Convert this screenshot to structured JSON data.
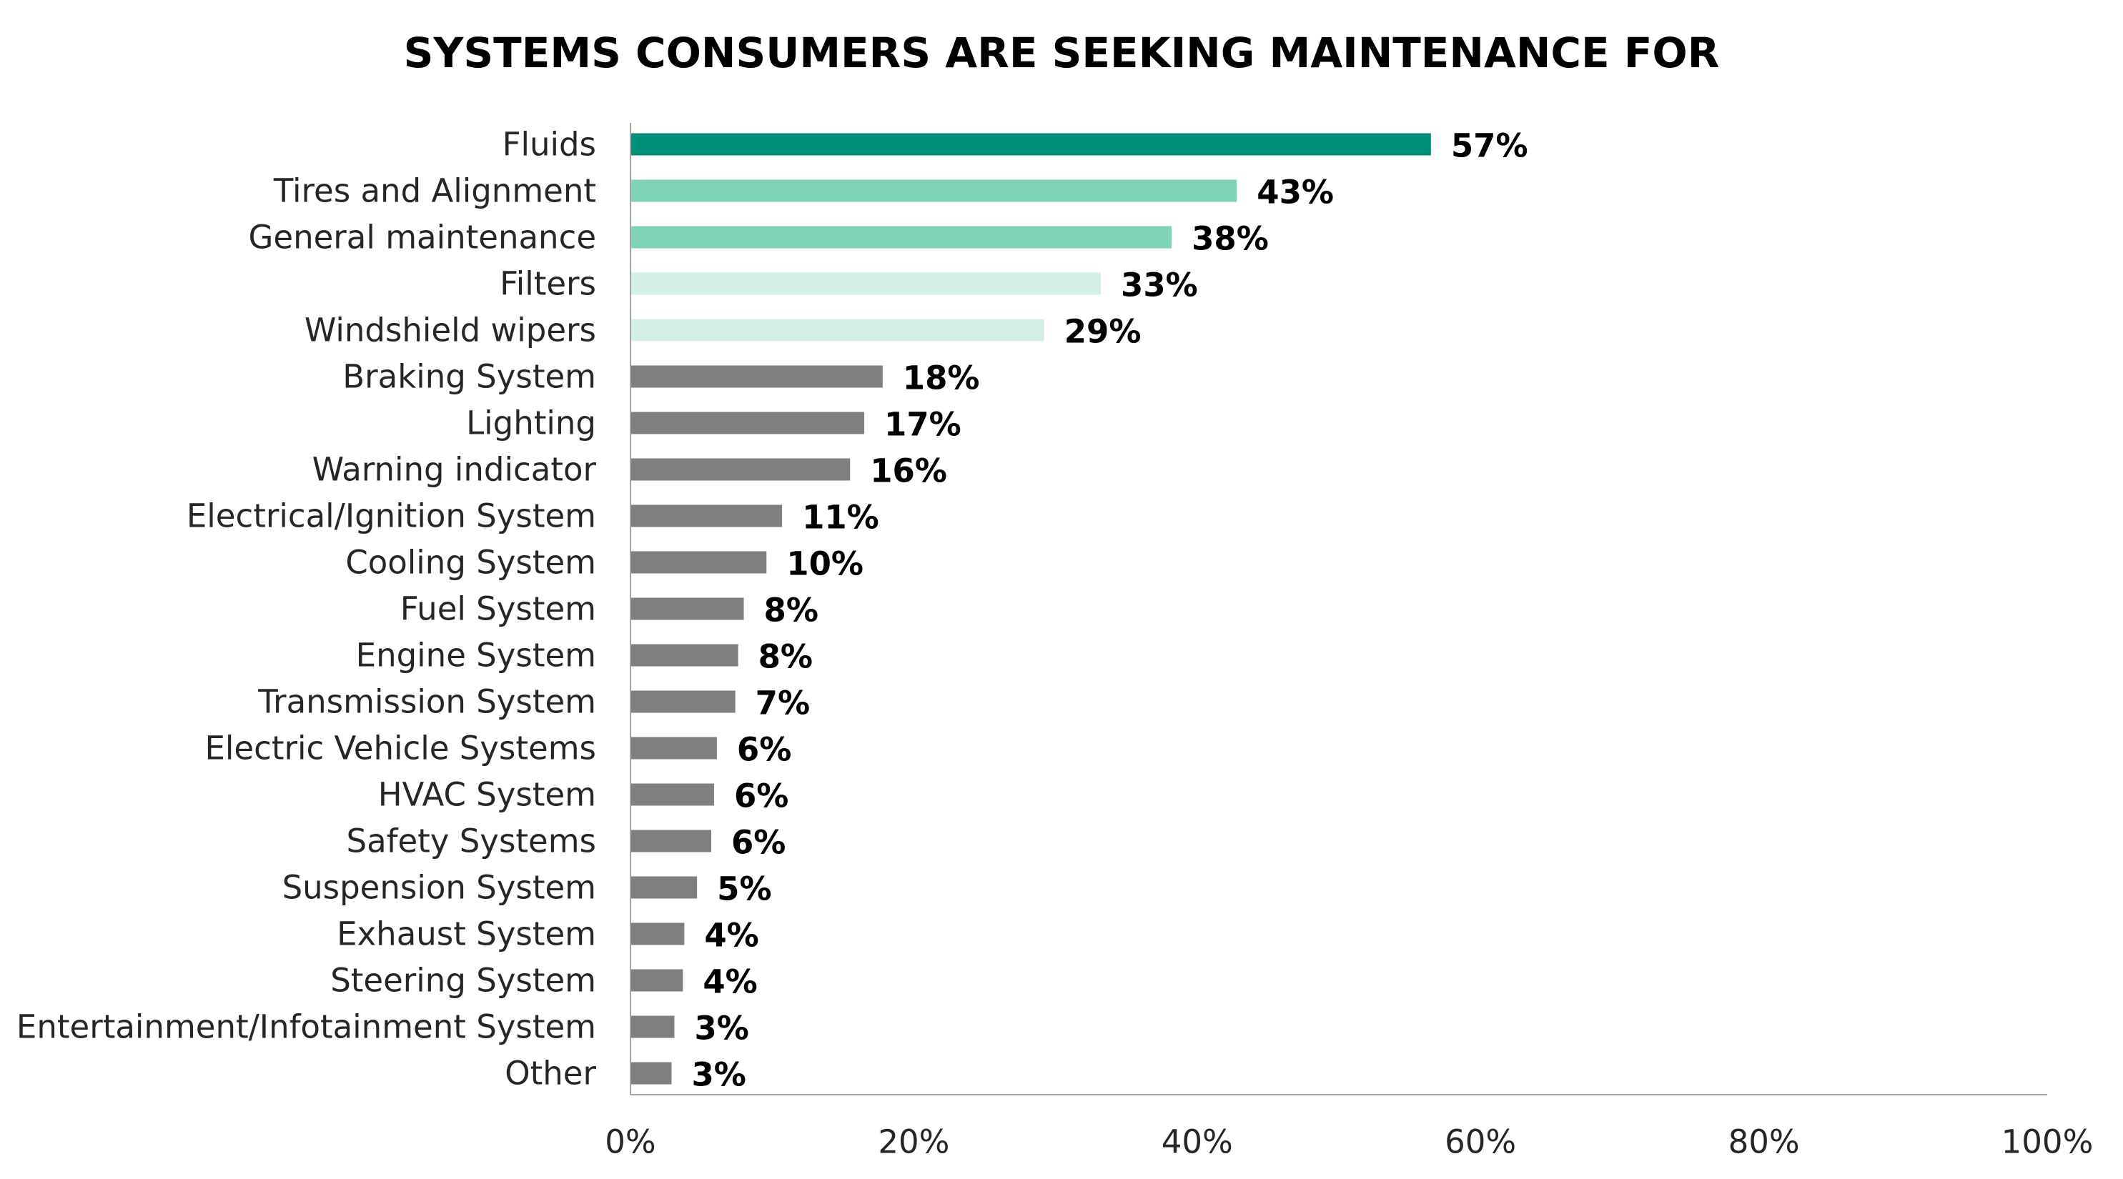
{
  "chart_data": {
    "type": "bar",
    "orientation": "horizontal",
    "title": "SYSTEMS CONSUMERS ARE SEEKING MAINTENANCE FOR",
    "xlabel": "",
    "ylabel": "",
    "xlim": [
      0,
      100
    ],
    "x_ticks": [
      "0%",
      "20%",
      "40%",
      "60%",
      "80%",
      "100%"
    ],
    "x_tick_values": [
      0,
      20,
      40,
      60,
      80,
      100
    ],
    "grid": false,
    "legend": "none",
    "categories": [
      "Fluids",
      "Tires and Alignment",
      "General maintenance",
      "Filters",
      "Windshield wipers",
      "Braking System",
      "Lighting",
      "Warning indicator",
      "Electrical/Ignition System",
      "Cooling System",
      "Fuel System",
      "Engine System",
      "Transmission System",
      "Electric Vehicle Systems",
      "HVAC System",
      "Safety Systems",
      "Suspension System",
      "Exhaust System",
      "Steering System",
      "Entertainment/Infotainment System",
      "Other"
    ],
    "values": [
      56.5,
      42.8,
      38.2,
      33.2,
      29.2,
      17.8,
      16.5,
      15.5,
      10.7,
      9.6,
      8.0,
      7.6,
      7.4,
      6.1,
      5.9,
      5.7,
      4.7,
      3.8,
      3.7,
      3.1,
      2.9
    ],
    "value_labels": [
      "57%",
      "43%",
      "38%",
      "33%",
      "29%",
      "18%",
      "17%",
      "16%",
      "11%",
      "10%",
      "8%",
      "8%",
      "7%",
      "6%",
      "6%",
      "6%",
      "5%",
      "4%",
      "4%",
      "3%",
      "3%"
    ],
    "bar_colors": [
      "#00907a",
      "#7fd3b7",
      "#7fd3b7",
      "#d4f0e6",
      "#d4f0e6",
      "#7f7f7f",
      "#7f7f7f",
      "#7f7f7f",
      "#7f7f7f",
      "#7f7f7f",
      "#7f7f7f",
      "#7f7f7f",
      "#7f7f7f",
      "#7f7f7f",
      "#7f7f7f",
      "#7f7f7f",
      "#7f7f7f",
      "#7f7f7f",
      "#7f7f7f",
      "#7f7f7f",
      "#7f7f7f"
    ],
    "axis_color": "#a6a6a6"
  }
}
